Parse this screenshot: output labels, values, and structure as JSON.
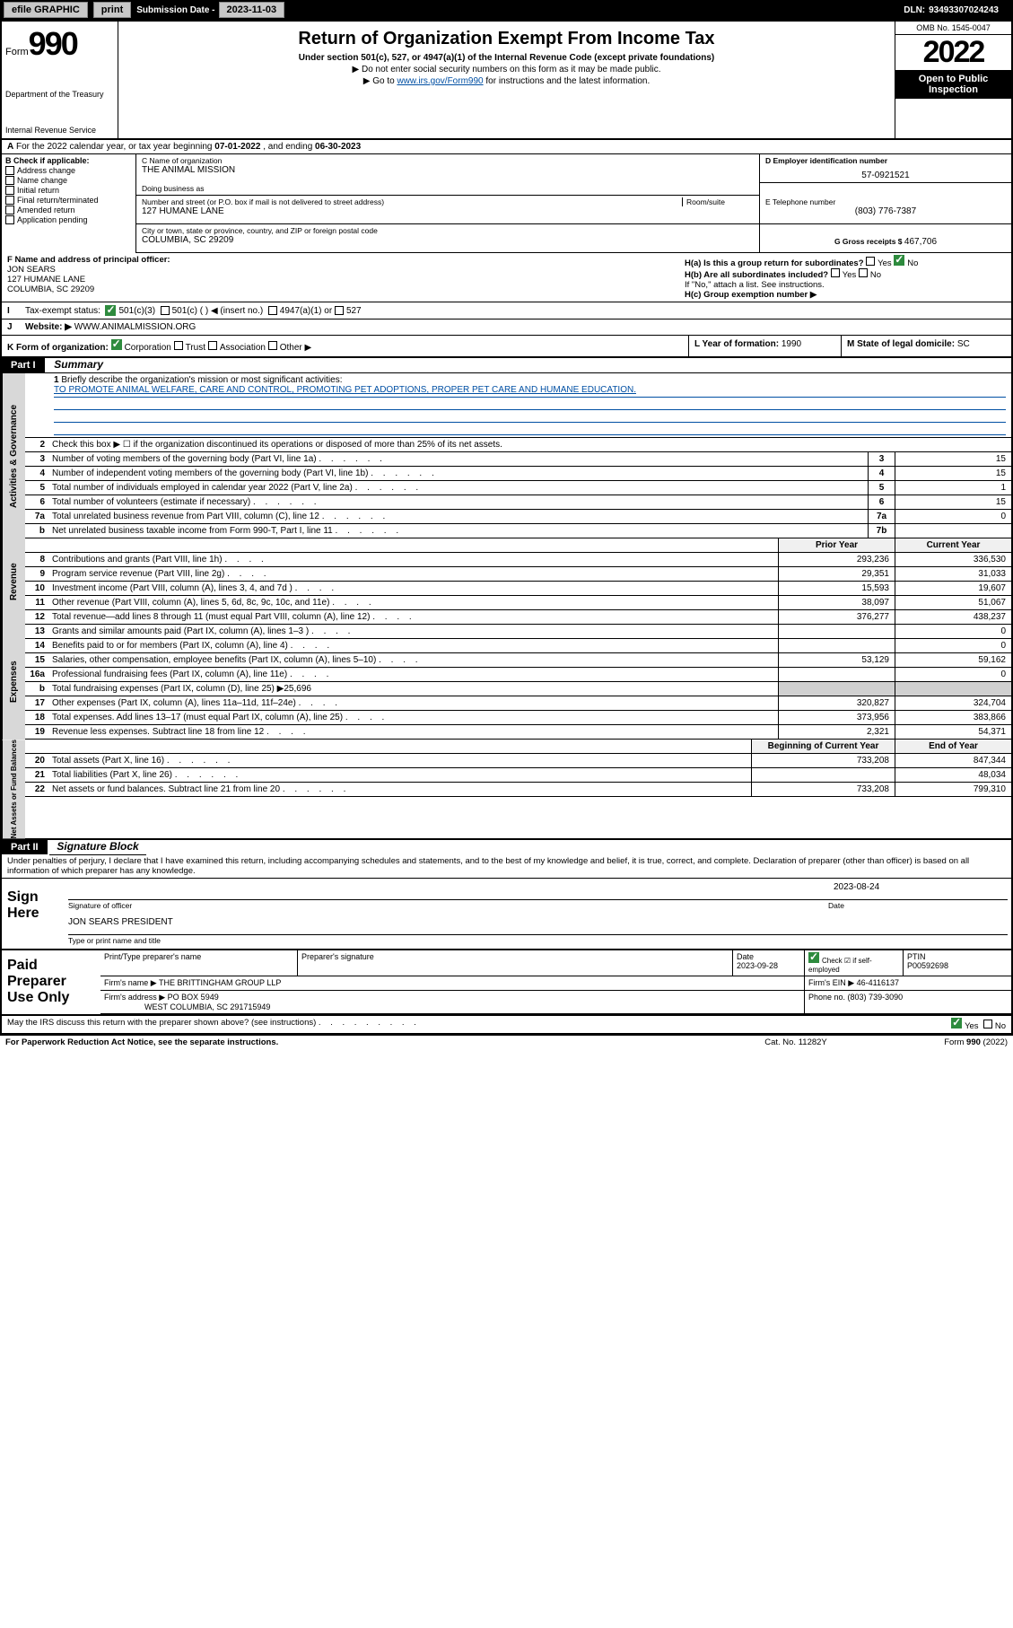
{
  "topbar": {
    "efile": "efile GRAPHIC",
    "print": "print",
    "subdate_lbl": "Submission Date - ",
    "subdate": "2023-11-03",
    "dln_lbl": "DLN: ",
    "dln": "93493307024243"
  },
  "header": {
    "form_word": "Form",
    "form_num": "990",
    "dept": "Department of the Treasury",
    "irs": "Internal Revenue Service",
    "title": "Return of Organization Exempt From Income Tax",
    "sub1": "Under section 501(c), 527, or 4947(a)(1) of the Internal Revenue Code (except private foundations)",
    "sub2": "▶ Do not enter social security numbers on this form as it may be made public.",
    "sub3_pre": "▶ Go to ",
    "sub3_link": "www.irs.gov/Form990",
    "sub3_post": " for instructions and the latest information.",
    "omb": "OMB No. 1545-0047",
    "year": "2022",
    "inspect": "Open to Public Inspection"
  },
  "rowA": {
    "text_pre": "For the 2022 calendar year, or tax year beginning ",
    "begin": "07-01-2022",
    "mid": " , and ending ",
    "end": "06-30-2023"
  },
  "colB": {
    "hdr": "B Check if applicable:",
    "items": [
      "Address change",
      "Name change",
      "Initial return",
      "Final return/terminated",
      "Amended return",
      "Application pending"
    ]
  },
  "colC": {
    "name_lbl": "C Name of organization",
    "name": "THE ANIMAL MISSION",
    "dba_lbl": "Doing business as",
    "dba": "",
    "addr_lbl": "Number and street (or P.O. box if mail is not delivered to street address)",
    "room_lbl": "Room/suite",
    "addr": "127 HUMANE LANE",
    "city_lbl": "City or town, state or province, country, and ZIP or foreign postal code",
    "city": "COLUMBIA, SC  29209"
  },
  "colD": {
    "d_lbl": "D Employer identification number",
    "d_val": "57-0921521",
    "e_lbl": "E Telephone number",
    "e_val": "(803) 776-7387",
    "g_lbl": "G Gross receipts $ ",
    "g_val": "467,706"
  },
  "rowF": {
    "f_lbl": "F Name and address of principal officer:",
    "f_name": "JON SEARS",
    "f_addr1": "127 HUMANE LANE",
    "f_addr2": "COLUMBIA, SC  29209",
    "ha_lbl": "H(a) Is this a group return for subordinates?",
    "ha_yes": "Yes",
    "ha_no": "No",
    "hb_lbl": "H(b) Are all subordinates included?",
    "hb_yes": "Yes",
    "hb_no": "No",
    "hb_note": "If \"No,\" attach a list. See instructions.",
    "hc_lbl": "H(c) Group exemption number ▶"
  },
  "rowI": {
    "lbl": "Tax-exempt status:",
    "o1": "501(c)(3)",
    "o2": "501(c) (  ) ◀ (insert no.)",
    "o3": "4947(a)(1) or",
    "o4": "527"
  },
  "rowJ": {
    "lbl": "Website: ▶",
    "val": "WWW.ANIMALMISSION.ORG"
  },
  "rowK": {
    "k_lbl": "K Form of organization:",
    "k_opts": [
      "Corporation",
      "Trust",
      "Association",
      "Other ▶"
    ],
    "l_lbl": "L Year of formation: ",
    "l_val": "1990",
    "m_lbl": "M State of legal domicile: ",
    "m_val": "SC"
  },
  "part1": {
    "hdr": "Part I",
    "title": "Summary",
    "q1": "Briefly describe the organization's mission or most significant activities:",
    "mission": "TO PROMOTE ANIMAL WELFARE, CARE AND CONTROL, PROMOTING PET ADOPTIONS, PROPER PET CARE AND HUMANE EDUCATION.",
    "q2": "Check this box ▶ ☐ if the organization discontinued its operations or disposed of more than 25% of its net assets.",
    "rows_gov": [
      {
        "n": "3",
        "d": "Number of voting members of the governing body (Part VI, line 1a)",
        "box": "3",
        "v": "15"
      },
      {
        "n": "4",
        "d": "Number of independent voting members of the governing body (Part VI, line 1b)",
        "box": "4",
        "v": "15"
      },
      {
        "n": "5",
        "d": "Total number of individuals employed in calendar year 2022 (Part V, line 2a)",
        "box": "5",
        "v": "1"
      },
      {
        "n": "6",
        "d": "Total number of volunteers (estimate if necessary)",
        "box": "6",
        "v": "15"
      },
      {
        "n": "7a",
        "d": "Total unrelated business revenue from Part VIII, column (C), line 12",
        "box": "7a",
        "v": "0"
      },
      {
        "n": "b",
        "d": "Net unrelated business taxable income from Form 990-T, Part I, line 11",
        "box": "7b",
        "v": ""
      }
    ],
    "col_hdrs": {
      "prior": "Prior Year",
      "curr": "Current Year"
    },
    "rows_rev": [
      {
        "n": "8",
        "d": "Contributions and grants (Part VIII, line 1h)",
        "p": "293,236",
        "c": "336,530"
      },
      {
        "n": "9",
        "d": "Program service revenue (Part VIII, line 2g)",
        "p": "29,351",
        "c": "31,033"
      },
      {
        "n": "10",
        "d": "Investment income (Part VIII, column (A), lines 3, 4, and 7d )",
        "p": "15,593",
        "c": "19,607"
      },
      {
        "n": "11",
        "d": "Other revenue (Part VIII, column (A), lines 5, 6d, 8c, 9c, 10c, and 11e)",
        "p": "38,097",
        "c": "51,067"
      },
      {
        "n": "12",
        "d": "Total revenue—add lines 8 through 11 (must equal Part VIII, column (A), line 12)",
        "p": "376,277",
        "c": "438,237"
      }
    ],
    "rows_exp": [
      {
        "n": "13",
        "d": "Grants and similar amounts paid (Part IX, column (A), lines 1–3 )",
        "p": "",
        "c": "0"
      },
      {
        "n": "14",
        "d": "Benefits paid to or for members (Part IX, column (A), line 4)",
        "p": "",
        "c": "0"
      },
      {
        "n": "15",
        "d": "Salaries, other compensation, employee benefits (Part IX, column (A), lines 5–10)",
        "p": "53,129",
        "c": "59,162"
      },
      {
        "n": "16a",
        "d": "Professional fundraising fees (Part IX, column (A), line 11e)",
        "p": "",
        "c": "0"
      },
      {
        "n": "b",
        "d": "Total fundraising expenses (Part IX, column (D), line 25) ▶25,696",
        "p": null,
        "c": null
      },
      {
        "n": "17",
        "d": "Other expenses (Part IX, column (A), lines 11a–11d, 11f–24e)",
        "p": "320,827",
        "c": "324,704"
      },
      {
        "n": "18",
        "d": "Total expenses. Add lines 13–17 (must equal Part IX, column (A), line 25)",
        "p": "373,956",
        "c": "383,866"
      },
      {
        "n": "19",
        "d": "Revenue less expenses. Subtract line 18 from line 12",
        "p": "2,321",
        "c": "54,371"
      }
    ],
    "col_hdrs2": {
      "prior": "Beginning of Current Year",
      "curr": "End of Year"
    },
    "rows_net": [
      {
        "n": "20",
        "d": "Total assets (Part X, line 16)",
        "p": "733,208",
        "c": "847,344"
      },
      {
        "n": "21",
        "d": "Total liabilities (Part X, line 26)",
        "p": "",
        "c": "48,034"
      },
      {
        "n": "22",
        "d": "Net assets or fund balances. Subtract line 21 from line 20",
        "p": "733,208",
        "c": "799,310"
      }
    ],
    "vtabs": {
      "gov": "Activities & Governance",
      "rev": "Revenue",
      "exp": "Expenses",
      "net": "Net Assets or Fund Balances"
    }
  },
  "part2": {
    "hdr": "Part II",
    "title": "Signature Block",
    "penalties": "Under penalties of perjury, I declare that I have examined this return, including accompanying schedules and statements, and to the best of my knowledge and belief, it is true, correct, and complete. Declaration of preparer (other than officer) is based on all information of which preparer has any knowledge.",
    "sign_lbl": "Sign Here",
    "sig_officer": "Signature of officer",
    "sig_date": "2023-08-24",
    "date_lbl": "Date",
    "officer_name": "JON SEARS PRESIDENT",
    "type_lbl": "Type or print name and title",
    "paid_lbl": "Paid Preparer Use Only",
    "prep_name_lbl": "Print/Type preparer's name",
    "prep_sig_lbl": "Preparer's signature",
    "prep_date_lbl": "Date",
    "prep_date": "2023-09-28",
    "prep_self_lbl": "Check ☑ if self-employed",
    "ptin_lbl": "PTIN",
    "ptin": "P00592698",
    "firm_name_lbl": "Firm's name ▶",
    "firm_name": "THE BRITTINGHAM GROUP LLP",
    "firm_ein_lbl": "Firm's EIN ▶",
    "firm_ein": "46-4116137",
    "firm_addr_lbl": "Firm's address ▶",
    "firm_addr1": "PO BOX 5949",
    "firm_addr2": "WEST COLUMBIA, SC  291715949",
    "phone_lbl": "Phone no. ",
    "phone": "(803) 739-3090",
    "discuss": "May the IRS discuss this return with the preparer shown above? (see instructions)",
    "discuss_yes": "Yes",
    "discuss_no": "No"
  },
  "footer": {
    "left": "For Paperwork Reduction Act Notice, see the separate instructions.",
    "mid": "Cat. No. 11282Y",
    "right": "Form 990 (2022)"
  },
  "colors": {
    "link": "#004fa3",
    "check": "#2e8b3e",
    "greybox": "#d0d0d0"
  }
}
